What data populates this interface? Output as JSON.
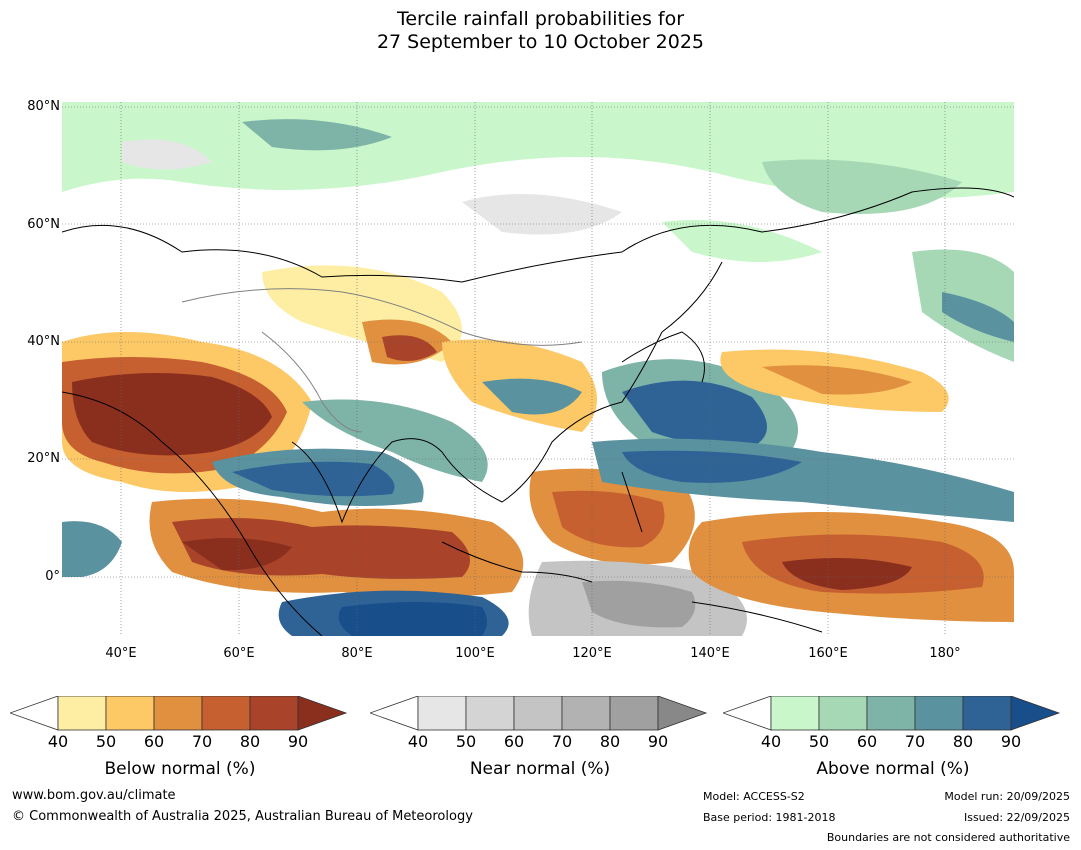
{
  "title_line1": "Tercile rainfall probabilities for",
  "title_line2": "27 September to 10 October 2025",
  "lat_labels": [
    "80°N",
    "60°N",
    "40°N",
    "20°N",
    "0°"
  ],
  "lon_labels": [
    "40°E",
    "60°E",
    "80°E",
    "100°E",
    "120°E",
    "140°E",
    "160°E",
    "180°"
  ],
  "colorbars": {
    "below": {
      "label": "Below normal (%)",
      "ticks": [
        "40",
        "50",
        "60",
        "70",
        "80",
        "90"
      ],
      "colors": [
        "#fdeea3",
        "#fdc866",
        "#e0903e",
        "#c66030",
        "#a9442a",
        "#8a2e1e"
      ]
    },
    "near": {
      "label": "Near normal (%)",
      "ticks": [
        "40",
        "50",
        "60",
        "70",
        "80",
        "90"
      ],
      "colors": [
        "#e6e6e6",
        "#d4d4d4",
        "#c4c4c4",
        "#b2b2b2",
        "#a0a0a0",
        "#888888"
      ]
    },
    "above": {
      "label": "Above normal (%)",
      "ticks": [
        "40",
        "50",
        "60",
        "70",
        "80",
        "90"
      ],
      "colors": [
        "#c9f7cb",
        "#a6d8b6",
        "#7eb3a8",
        "#5a92a0",
        "#2f6396",
        "#184e8a"
      ]
    }
  },
  "footer": {
    "url": "www.bom.gov.au/climate",
    "copyright": "© Commonwealth of Australia 2025, Australian Bureau of Meteorology",
    "model": "Model: ACCESS-S2",
    "base_period": "Base period: 1981-2018",
    "model_run": "Model run: 20/09/2025",
    "issued": "Issued: 22/09/2025",
    "boundaries_note": "Boundaries are not considered authoritative"
  }
}
